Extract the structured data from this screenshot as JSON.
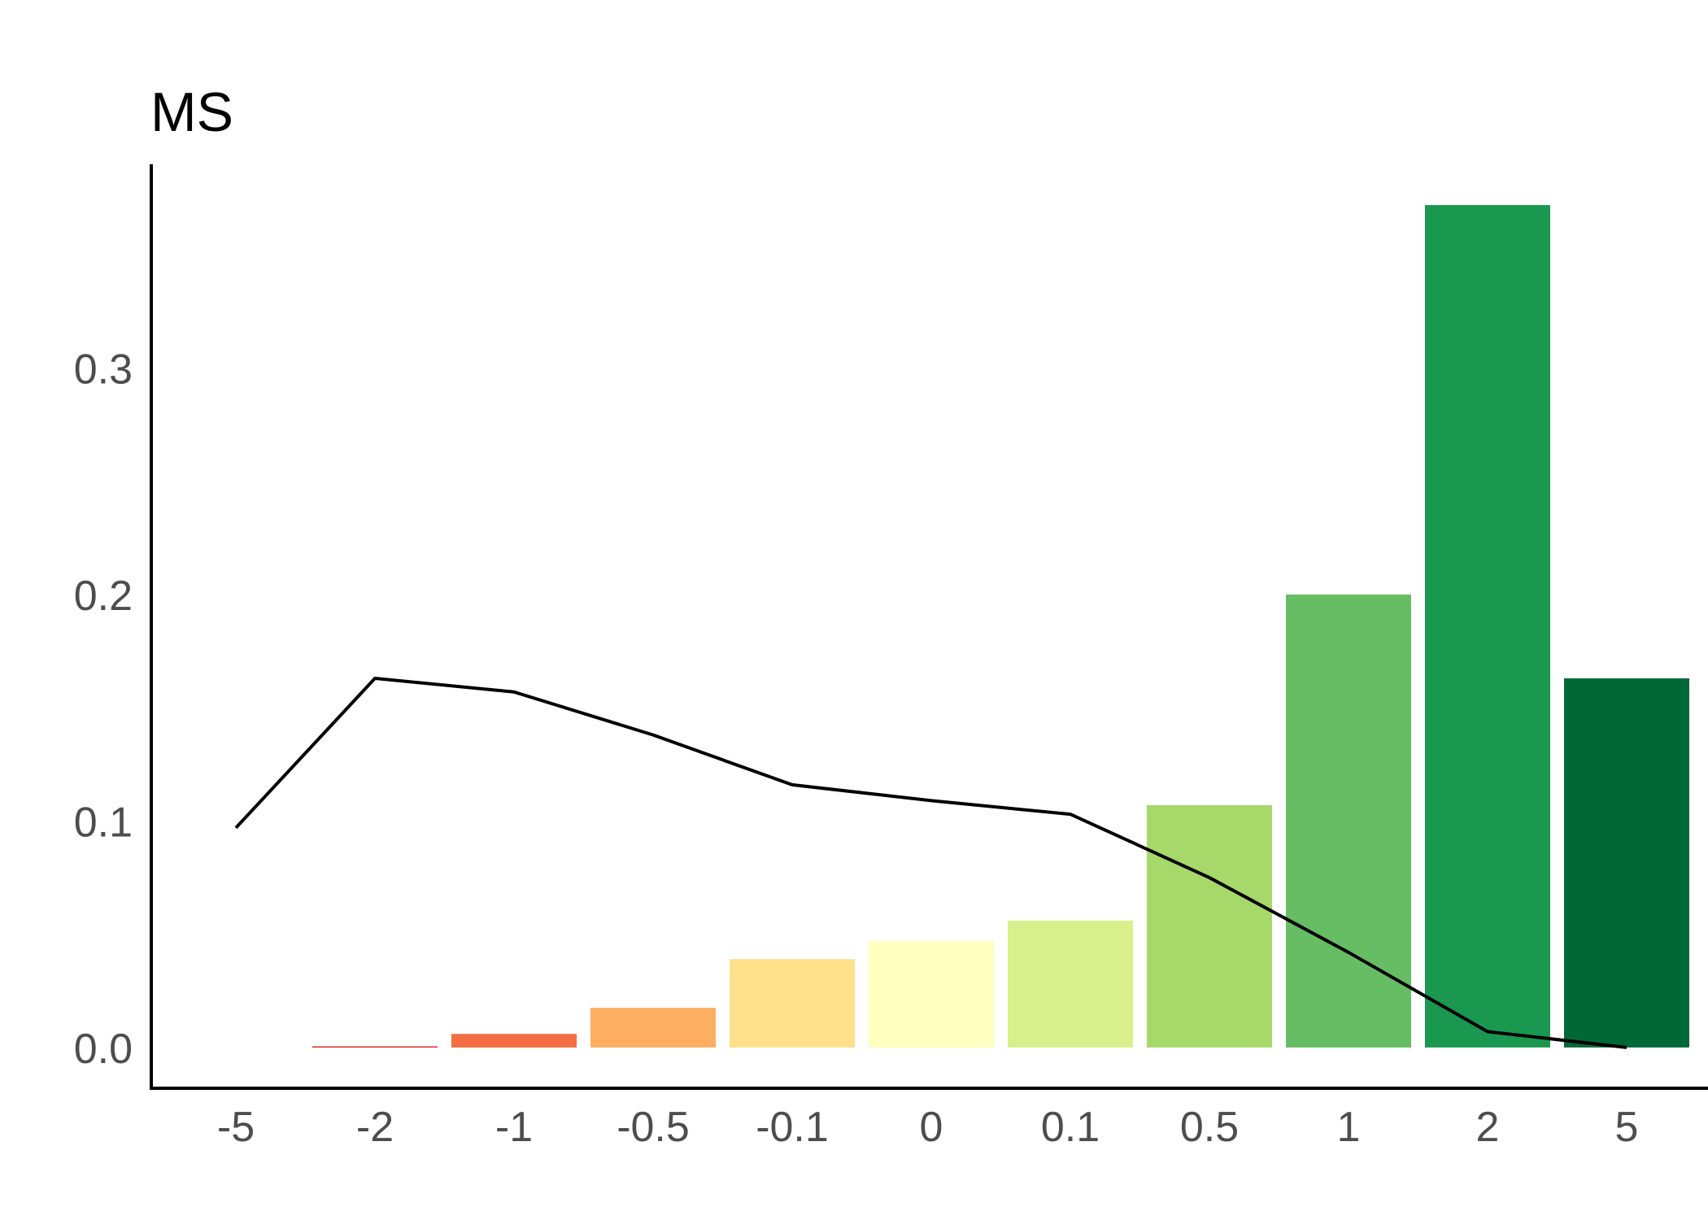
{
  "chart_data": {
    "type": "bar",
    "title": "MS",
    "xlabel": "",
    "ylabel": "",
    "categories": [
      "-5",
      "-2",
      "-1",
      "-0.5",
      "-0.1",
      "0",
      "0.1",
      "0.5",
      "1",
      "2",
      "5"
    ],
    "series": [
      {
        "type": "bar",
        "values": [
          0.0,
          0.0005,
          0.006,
          0.0175,
          0.039,
          0.047,
          0.056,
          0.107,
          0.2,
          0.372,
          0.163
        ],
        "colors": [
          "#a50026",
          "#d73027",
          "#f46d43",
          "#fdae61",
          "#fee08b",
          "#ffffbf",
          "#d9ef8b",
          "#a6d96a",
          "#66bd63",
          "#1a9850",
          "#006837"
        ]
      },
      {
        "type": "line",
        "values": [
          0.097,
          0.163,
          0.157,
          0.138,
          0.116,
          0.109,
          0.103,
          0.075,
          0.042,
          0.007,
          0.0
        ],
        "color": "#000000"
      }
    ],
    "ylim": [
      -0.018,
      0.39
    ],
    "yticks": [
      "0.0",
      "0.1",
      "0.2",
      "0.3"
    ],
    "ytick_values": [
      0.0,
      0.1,
      0.2,
      0.3
    ],
    "grid": false,
    "legend": "none"
  }
}
